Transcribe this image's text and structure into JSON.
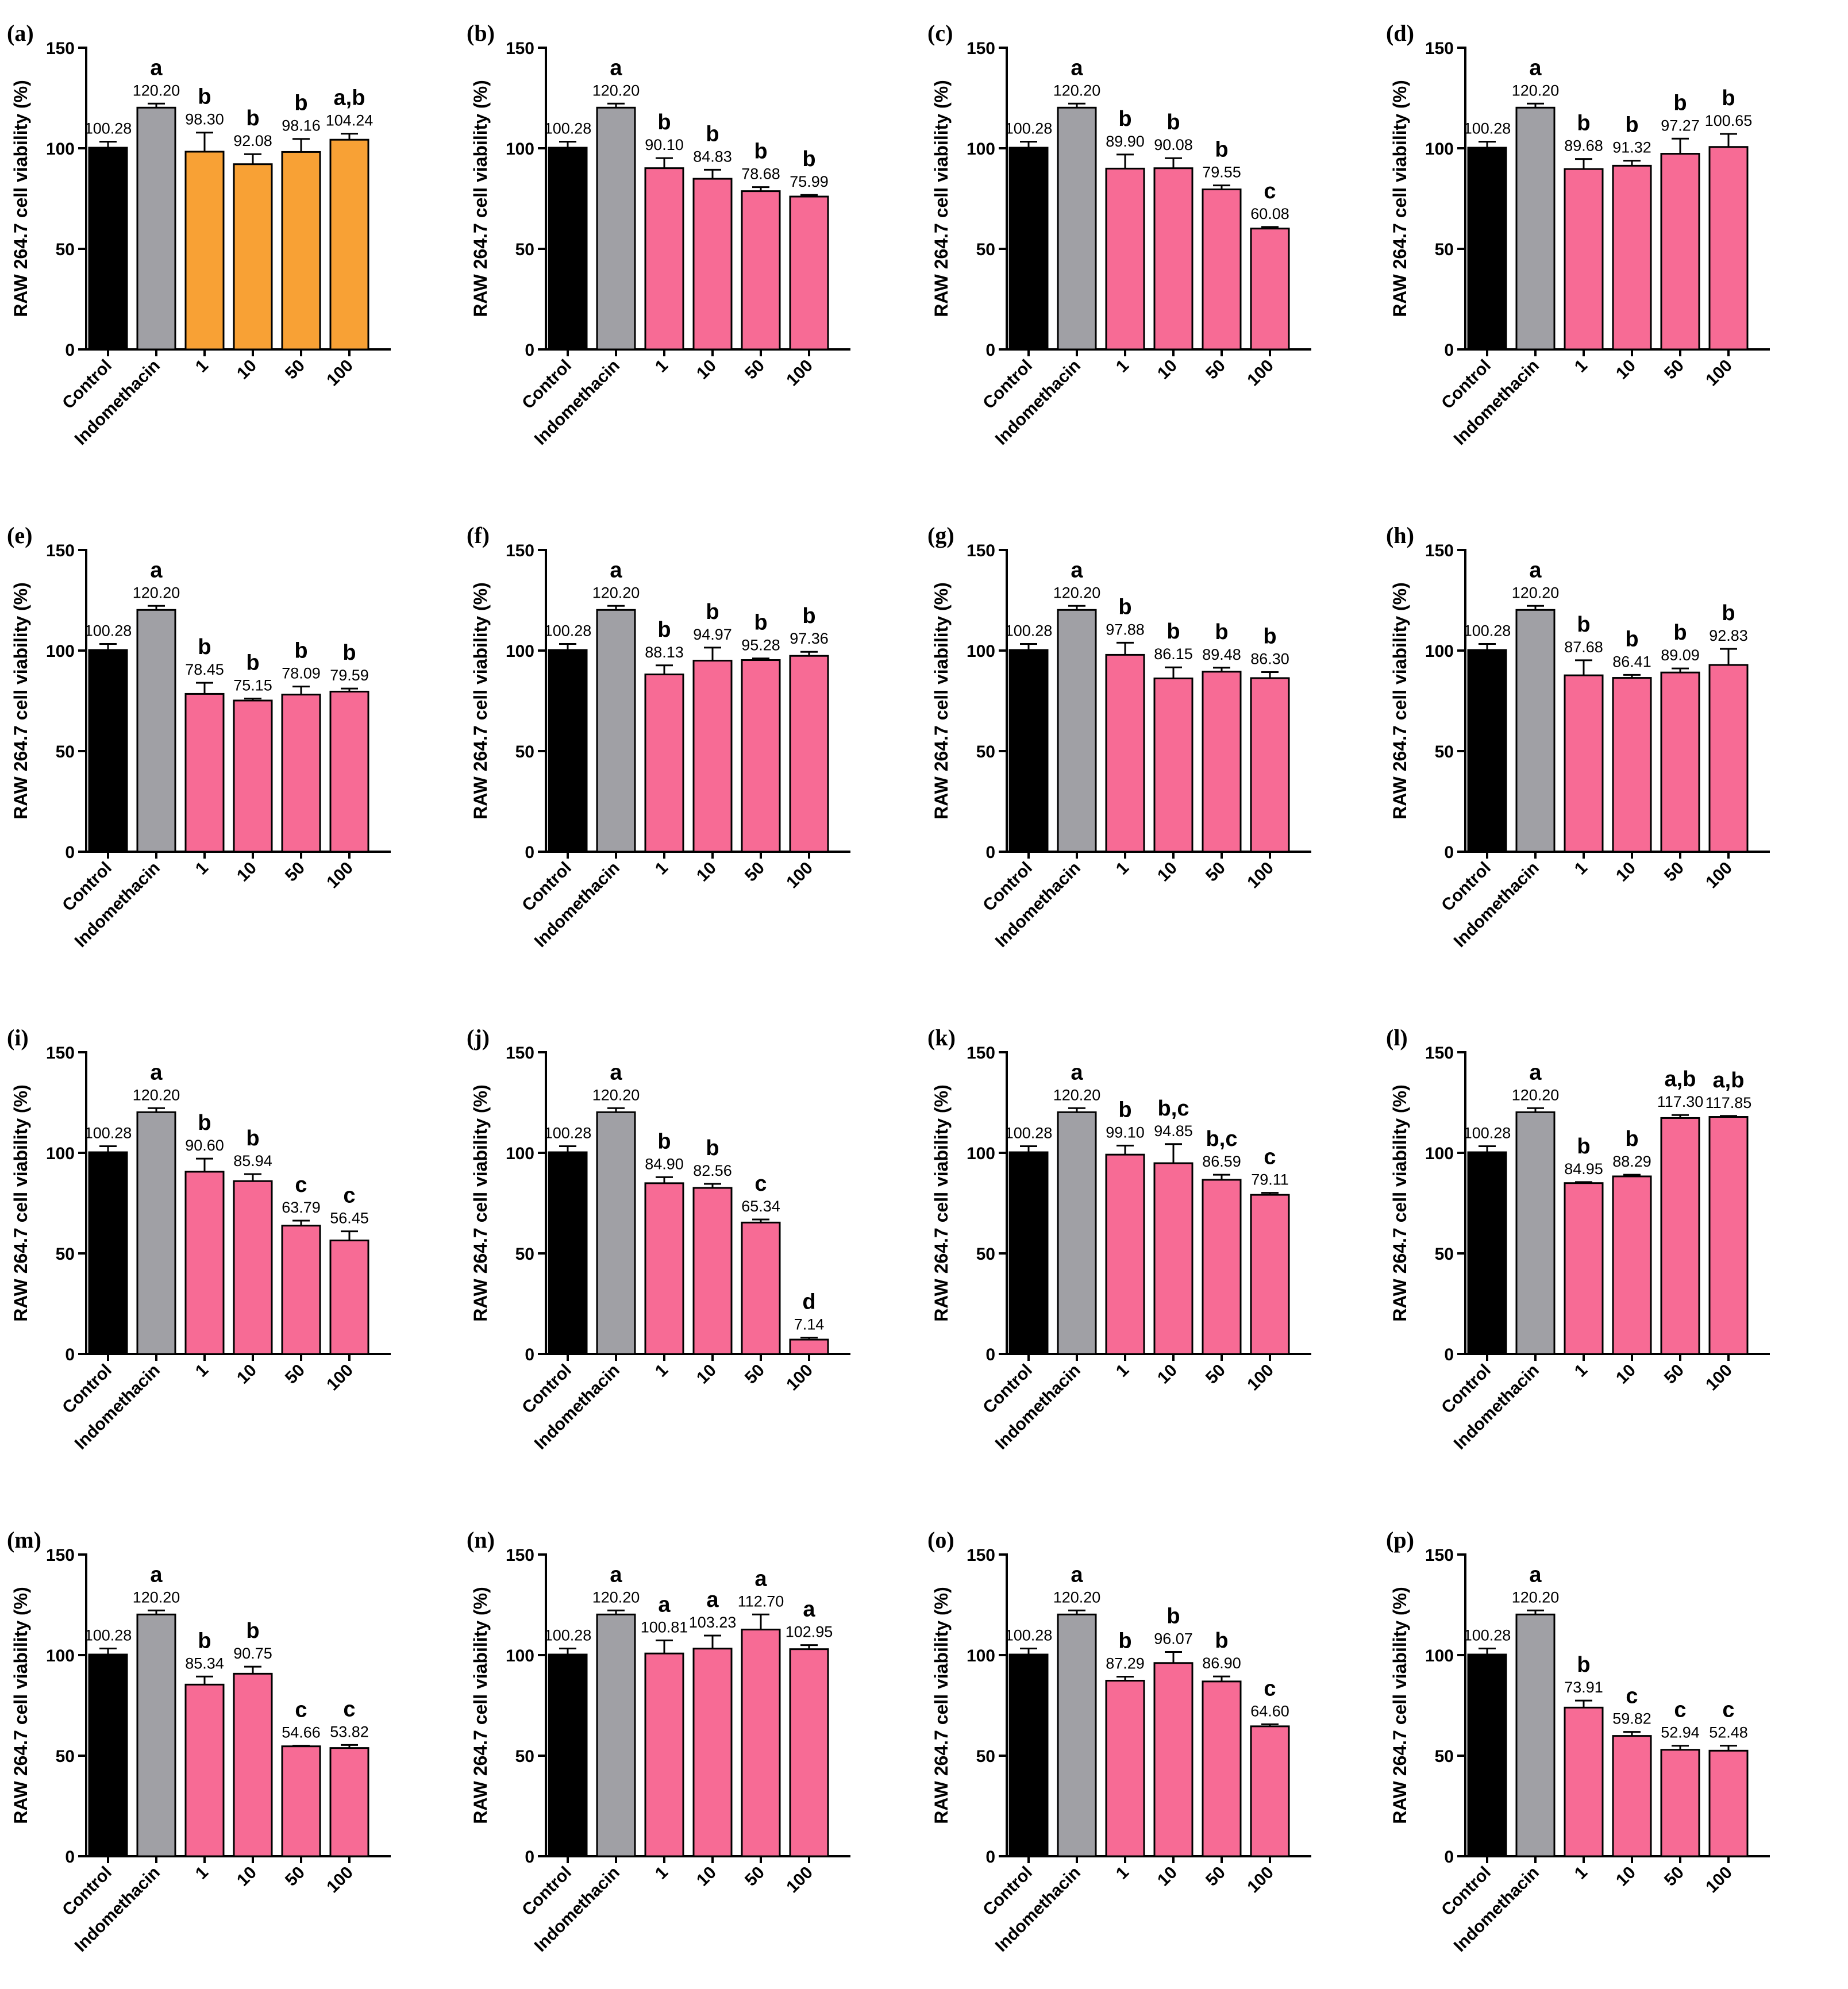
{
  "chart_data": [
    {
      "panel_label": "(a)",
      "type": "bar",
      "ylabel": "RAW 264.7 cell viability (%)",
      "ylim": [
        0,
        150
      ],
      "yticks": [
        "0",
        "50",
        "100",
        "150"
      ],
      "categories": [
        "Control",
        "Indomethacin",
        "1",
        "10",
        "50",
        "100"
      ],
      "values": [
        100.28,
        120.2,
        98.3,
        92.08,
        98.16,
        104.24
      ],
      "errors": [
        3.0,
        2.0,
        9.5,
        5.0,
        6.5,
        3.0
      ],
      "value_labels": [
        "100.28",
        "120.20",
        "98.30",
        "92.08",
        "98.16",
        "104.24"
      ],
      "letters": [
        "",
        "a",
        "b",
        "b",
        "b",
        "a,b"
      ],
      "colors": [
        "#000000",
        "#A0A0A5",
        "#F8A135",
        "#F8A135",
        "#F8A135",
        "#F8A135"
      ]
    },
    {
      "panel_label": "(b)",
      "type": "bar",
      "ylabel": "RAW 264.7 cell viability (%)",
      "ylim": [
        0,
        150
      ],
      "yticks": [
        "0",
        "50",
        "100",
        "150"
      ],
      "categories": [
        "Control",
        "Indomethacin",
        "1",
        "10",
        "50",
        "100"
      ],
      "values": [
        100.28,
        120.2,
        90.1,
        84.83,
        78.68,
        75.99
      ],
      "errors": [
        3.0,
        2.0,
        5.0,
        4.5,
        2.0,
        0.8
      ],
      "value_labels": [
        "100.28",
        "120.20",
        "90.10",
        "84.83",
        "78.68",
        "75.99"
      ],
      "letters": [
        "",
        "a",
        "b",
        "b",
        "b",
        "b"
      ],
      "colors": [
        "#000000",
        "#A0A0A5",
        "#F76B95",
        "#F76B95",
        "#F76B95",
        "#F76B95"
      ]
    },
    {
      "panel_label": "(c)",
      "type": "bar",
      "ylabel": "RAW 264.7 cell viability (%)",
      "ylim": [
        0,
        150
      ],
      "yticks": [
        "0",
        "50",
        "100",
        "150"
      ],
      "categories": [
        "Control",
        "Indomethacin",
        "1",
        "10",
        "50",
        "100"
      ],
      "values": [
        100.28,
        120.2,
        89.9,
        90.08,
        79.55,
        60.08
      ],
      "errors": [
        3.0,
        2.0,
        7.0,
        5.0,
        2.0,
        0.8
      ],
      "value_labels": [
        "100.28",
        "120.20",
        "89.90",
        "90.08",
        "79.55",
        "60.08"
      ],
      "letters": [
        "",
        "a",
        "b",
        "b",
        "b",
        "c"
      ],
      "colors": [
        "#000000",
        "#A0A0A5",
        "#F76B95",
        "#F76B95",
        "#F76B95",
        "#F76B95"
      ]
    },
    {
      "panel_label": "(d)",
      "type": "bar",
      "ylabel": "RAW 264.7 cell viability (%)",
      "ylim": [
        0,
        150
      ],
      "yticks": [
        "0",
        "50",
        "100",
        "150"
      ],
      "categories": [
        "Control",
        "Indomethacin",
        "1",
        "10",
        "50",
        "100"
      ],
      "values": [
        100.28,
        120.2,
        89.68,
        91.32,
        97.27,
        100.65
      ],
      "errors": [
        3.0,
        2.0,
        5.0,
        2.5,
        7.5,
        6.5
      ],
      "value_labels": [
        "100.28",
        "120.20",
        "89.68",
        "91.32",
        "97.27",
        "100.65"
      ],
      "letters": [
        "",
        "a",
        "b",
        "b",
        "b",
        "b"
      ],
      "colors": [
        "#000000",
        "#A0A0A5",
        "#F76B95",
        "#F76B95",
        "#F76B95",
        "#F76B95"
      ]
    },
    {
      "panel_label": "(e)",
      "type": "bar",
      "ylabel": "RAW 264.7 cell viability (%)",
      "ylim": [
        0,
        150
      ],
      "yticks": [
        "0",
        "50",
        "100",
        "150"
      ],
      "categories": [
        "Control",
        "Indomethacin",
        "1",
        "10",
        "50",
        "100"
      ],
      "values": [
        100.28,
        120.2,
        78.45,
        75.15,
        78.09,
        79.59
      ],
      "errors": [
        3.0,
        2.0,
        5.5,
        1.0,
        4.0,
        1.5
      ],
      "value_labels": [
        "100.28",
        "120.20",
        "78.45",
        "75.15",
        "78.09",
        "79.59"
      ],
      "letters": [
        "",
        "a",
        "b",
        "b",
        "b",
        "b"
      ],
      "colors": [
        "#000000",
        "#A0A0A5",
        "#F76B95",
        "#F76B95",
        "#F76B95",
        "#F76B95"
      ]
    },
    {
      "panel_label": "(f)",
      "type": "bar",
      "ylabel": "RAW 264.7 cell viability (%)",
      "ylim": [
        0,
        150
      ],
      "yticks": [
        "0",
        "50",
        "100",
        "150"
      ],
      "categories": [
        "Control",
        "Indomethacin",
        "1",
        "10",
        "50",
        "100"
      ],
      "values": [
        100.28,
        120.2,
        88.13,
        94.97,
        95.28,
        97.36
      ],
      "errors": [
        3.0,
        2.0,
        4.5,
        6.5,
        0.8,
        2.0
      ],
      "value_labels": [
        "100.28",
        "120.20",
        "88.13",
        "94.97",
        "95.28",
        "97.36"
      ],
      "letters": [
        "",
        "a",
        "b",
        "b",
        "b",
        "b"
      ],
      "colors": [
        "#000000",
        "#A0A0A5",
        "#F76B95",
        "#F76B95",
        "#F76B95",
        "#F76B95"
      ]
    },
    {
      "panel_label": "(g)",
      "type": "bar",
      "ylabel": "RAW 264.7 cell viability (%)",
      "ylim": [
        0,
        150
      ],
      "yticks": [
        "0",
        "50",
        "100",
        "150"
      ],
      "categories": [
        "Control",
        "Indomethacin",
        "1",
        "10",
        "50",
        "100"
      ],
      "values": [
        100.28,
        120.2,
        97.88,
        86.15,
        89.48,
        86.3
      ],
      "errors": [
        3.0,
        2.0,
        6.0,
        5.5,
        2.0,
        3.0
      ],
      "value_labels": [
        "100.28",
        "120.20",
        "97.88",
        "86.15",
        "89.48",
        "86.30"
      ],
      "letters": [
        "",
        "a",
        "b",
        "b",
        "b",
        "b"
      ],
      "colors": [
        "#000000",
        "#A0A0A5",
        "#F76B95",
        "#F76B95",
        "#F76B95",
        "#F76B95"
      ]
    },
    {
      "panel_label": "(h)",
      "type": "bar",
      "ylabel": "RAW 264.7 cell viability (%)",
      "ylim": [
        0,
        150
      ],
      "yticks": [
        "0",
        "50",
        "100",
        "150"
      ],
      "categories": [
        "Control",
        "Indomethacin",
        "1",
        "10",
        "50",
        "100"
      ],
      "values": [
        100.28,
        120.2,
        87.68,
        86.41,
        89.09,
        92.83
      ],
      "errors": [
        3.0,
        2.0,
        7.5,
        1.5,
        2.0,
        8.0
      ],
      "value_labels": [
        "100.28",
        "120.20",
        "87.68",
        "86.41",
        "89.09",
        "92.83"
      ],
      "letters": [
        "",
        "a",
        "b",
        "b",
        "b",
        "b"
      ],
      "colors": [
        "#000000",
        "#A0A0A5",
        "#F76B95",
        "#F76B95",
        "#F76B95",
        "#F76B95"
      ]
    },
    {
      "panel_label": "(i)",
      "type": "bar",
      "ylabel": "RAW 264.7 cell viability (%)",
      "ylim": [
        0,
        150
      ],
      "yticks": [
        "0",
        "50",
        "100",
        "150"
      ],
      "categories": [
        "Control",
        "Indomethacin",
        "1",
        "10",
        "50",
        "100"
      ],
      "values": [
        100.28,
        120.2,
        90.6,
        85.94,
        63.79,
        56.45
      ],
      "errors": [
        3.0,
        2.0,
        6.5,
        3.5,
        2.5,
        4.5
      ],
      "value_labels": [
        "100.28",
        "120.20",
        "90.60",
        "85.94",
        "63.79",
        "56.45"
      ],
      "letters": [
        "",
        "a",
        "b",
        "b",
        "c",
        "c"
      ],
      "colors": [
        "#000000",
        "#A0A0A5",
        "#F76B95",
        "#F76B95",
        "#F76B95",
        "#F76B95"
      ]
    },
    {
      "panel_label": "(j)",
      "type": "bar",
      "ylabel": "RAW 264.7 cell viability (%)",
      "ylim": [
        0,
        150
      ],
      "yticks": [
        "0",
        "50",
        "100",
        "150"
      ],
      "categories": [
        "Control",
        "Indomethacin",
        "1",
        "10",
        "50",
        "100"
      ],
      "values": [
        100.28,
        120.2,
        84.9,
        82.56,
        65.34,
        7.14
      ],
      "errors": [
        3.0,
        2.0,
        3.0,
        2.0,
        1.5,
        1.0
      ],
      "value_labels": [
        "100.28",
        "120.20",
        "84.90",
        "82.56",
        "65.34",
        "7.14"
      ],
      "letters": [
        "",
        "a",
        "b",
        "b",
        "c",
        "d"
      ],
      "colors": [
        "#000000",
        "#A0A0A5",
        "#F76B95",
        "#F76B95",
        "#F76B95",
        "#F76B95"
      ]
    },
    {
      "panel_label": "(k)",
      "type": "bar",
      "ylabel": "RAW 264.7 cell viability (%)",
      "ylim": [
        0,
        150
      ],
      "yticks": [
        "0",
        "50",
        "100",
        "150"
      ],
      "categories": [
        "Control",
        "Indomethacin",
        "1",
        "10",
        "50",
        "100"
      ],
      "values": [
        100.28,
        120.2,
        99.1,
        94.85,
        86.59,
        79.11
      ],
      "errors": [
        3.0,
        2.0,
        4.5,
        9.5,
        2.5,
        1.0
      ],
      "value_labels": [
        "100.28",
        "120.20",
        "99.10",
        "94.85",
        "86.59",
        "79.11"
      ],
      "letters": [
        "",
        "a",
        "b",
        "b,c",
        "b,c",
        "c"
      ],
      "colors": [
        "#000000",
        "#A0A0A5",
        "#F76B95",
        "#F76B95",
        "#F76B95",
        "#F76B95"
      ]
    },
    {
      "panel_label": "(l)",
      "type": "bar",
      "ylabel": "RAW 264.7 cell viability (%)",
      "ylim": [
        0,
        150
      ],
      "yticks": [
        "0",
        "50",
        "100",
        "150"
      ],
      "categories": [
        "Control",
        "Indomethacin",
        "1",
        "10",
        "50",
        "100"
      ],
      "values": [
        100.28,
        120.2,
        84.95,
        88.29,
        117.3,
        117.85
      ],
      "errors": [
        3.0,
        2.0,
        0.5,
        0.8,
        1.5,
        0.5
      ],
      "value_labels": [
        "100.28",
        "120.20",
        "84.95",
        "88.29",
        "117.30",
        "117.85"
      ],
      "letters": [
        "",
        "a",
        "b",
        "b",
        "a,b",
        "a,b"
      ],
      "colors": [
        "#000000",
        "#A0A0A5",
        "#F76B95",
        "#F76B95",
        "#F76B95",
        "#F76B95"
      ]
    },
    {
      "panel_label": "(m)",
      "type": "bar",
      "ylabel": "RAW 264.7 cell viability (%)",
      "ylim": [
        0,
        150
      ],
      "yticks": [
        "0",
        "50",
        "100",
        "150"
      ],
      "categories": [
        "Control",
        "Indomethacin",
        "1",
        "10",
        "50",
        "100"
      ],
      "values": [
        100.28,
        120.2,
        85.34,
        90.75,
        54.66,
        53.82
      ],
      "errors": [
        3.0,
        2.0,
        4.0,
        3.5,
        0.3,
        1.5
      ],
      "value_labels": [
        "100.28",
        "120.20",
        "85.34",
        "90.75",
        "54.66",
        "53.82"
      ],
      "letters": [
        "",
        "a",
        "b",
        "b",
        "c",
        "c"
      ],
      "colors": [
        "#000000",
        "#A0A0A5",
        "#F76B95",
        "#F76B95",
        "#F76B95",
        "#F76B95"
      ]
    },
    {
      "panel_label": "(n)",
      "type": "bar",
      "ylabel": "RAW 264.7 cell viability (%)",
      "ylim": [
        0,
        150
      ],
      "yticks": [
        "0",
        "50",
        "100",
        "150"
      ],
      "categories": [
        "Control",
        "Indomethacin",
        "1",
        "10",
        "50",
        "100"
      ],
      "values": [
        100.28,
        120.2,
        100.81,
        103.23,
        112.7,
        102.95
      ],
      "errors": [
        3.0,
        2.0,
        6.5,
        6.5,
        7.5,
        2.0
      ],
      "value_labels": [
        "100.28",
        "120.20",
        "100.81",
        "103.23",
        "112.70",
        "102.95"
      ],
      "letters": [
        "",
        "a",
        "a",
        "a",
        "a",
        "a"
      ],
      "colors": [
        "#000000",
        "#A0A0A5",
        "#F76B95",
        "#F76B95",
        "#F76B95",
        "#F76B95"
      ]
    },
    {
      "panel_label": "(o)",
      "type": "bar",
      "ylabel": "RAW 264.7 cell viability (%)",
      "ylim": [
        0,
        150
      ],
      "yticks": [
        "0",
        "50",
        "100",
        "150"
      ],
      "categories": [
        "Control",
        "Indomethacin",
        "1",
        "10",
        "50",
        "100"
      ],
      "values": [
        100.28,
        120.2,
        87.29,
        96.07,
        86.9,
        64.6
      ],
      "errors": [
        3.0,
        2.0,
        2.0,
        5.5,
        2.5,
        1.0
      ],
      "value_labels": [
        "100.28",
        "120.20",
        "87.29",
        "96.07",
        "86.90",
        "64.60"
      ],
      "letters": [
        "",
        "a",
        "b",
        "b",
        "b",
        "c"
      ],
      "colors": [
        "#000000",
        "#A0A0A5",
        "#F76B95",
        "#F76B95",
        "#F76B95",
        "#F76B95"
      ]
    },
    {
      "panel_label": "(p)",
      "type": "bar",
      "ylabel": "RAW 264.7 cell viability (%)",
      "ylim": [
        0,
        150
      ],
      "yticks": [
        "0",
        "50",
        "100",
        "150"
      ],
      "categories": [
        "Control",
        "Indomethacin",
        "1",
        "10",
        "50",
        "100"
      ],
      "values": [
        100.28,
        120.2,
        73.91,
        59.82,
        52.94,
        52.48
      ],
      "errors": [
        3.0,
        2.0,
        3.5,
        2.0,
        2.0,
        2.5
      ],
      "value_labels": [
        "100.28",
        "120.20",
        "73.91",
        "59.82",
        "52.94",
        "52.48"
      ],
      "letters": [
        "",
        "a",
        "b",
        "c",
        "c",
        "c"
      ],
      "colors": [
        "#000000",
        "#A0A0A5",
        "#F76B95",
        "#F76B95",
        "#F76B95",
        "#F76B95"
      ]
    }
  ]
}
